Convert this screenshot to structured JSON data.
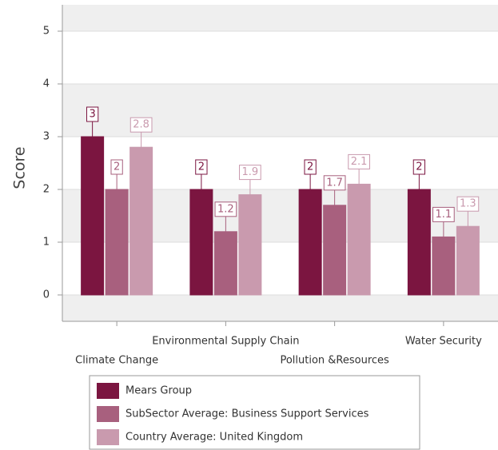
{
  "chart_data": {
    "type": "bar",
    "y_label": "Score",
    "categories": [
      "Climate Change",
      "Environmental Supply Chain",
      "Pollution &Resources",
      "Water Security"
    ],
    "series": [
      {
        "name": "Mears Group",
        "color": "#7b1540",
        "values": [
          3,
          2,
          2,
          2
        ]
      },
      {
        "name": "SubSector Average: Business Support Services",
        "color": "#a8607e",
        "values": [
          2,
          1.2,
          1.7,
          1.1
        ]
      },
      {
        "name": "Country Average: United Kingdom",
        "color": "#c99aae",
        "values": [
          2.8,
          1.9,
          2.1,
          1.3
        ]
      }
    ],
    "ylim": [
      -0.5,
      5.5
    ],
    "yticks": [
      0,
      1,
      2,
      3,
      4,
      5
    ],
    "grid": true
  }
}
